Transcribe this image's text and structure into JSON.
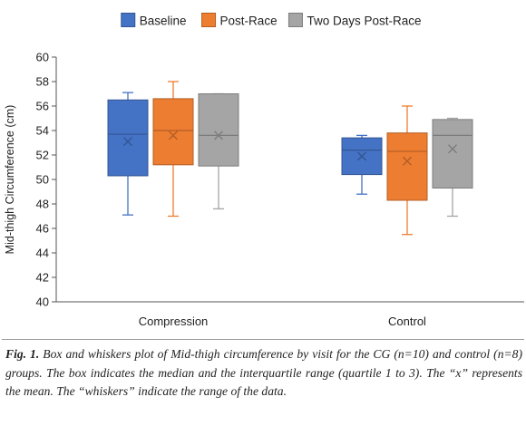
{
  "chart_data": {
    "type": "box",
    "ylabel": "Mid-thigh Circumference (cm)",
    "ylim": [
      40,
      60
    ],
    "ytick_step": 2,
    "categories": [
      "Compression",
      "Control"
    ],
    "legend_position": "top",
    "series": [
      {
        "name": "Baseline",
        "color": "#4472c4",
        "boxes": [
          {
            "category": "Compression",
            "min": 47.1,
            "q1": 50.3,
            "median": 53.7,
            "q3": 56.5,
            "max": 57.1,
            "mean": 53.1
          },
          {
            "category": "Control",
            "min": 48.8,
            "q1": 50.4,
            "median": 52.4,
            "q3": 53.4,
            "max": 53.6,
            "mean": 51.9
          }
        ]
      },
      {
        "name": "Post-Race",
        "color": "#ed7d31",
        "boxes": [
          {
            "category": "Compression",
            "min": 47.0,
            "q1": 51.2,
            "median": 54.0,
            "q3": 56.6,
            "max": 58.0,
            "mean": 53.6
          },
          {
            "category": "Control",
            "min": 45.5,
            "q1": 48.3,
            "median": 52.3,
            "q3": 53.8,
            "max": 56.0,
            "mean": 51.5
          }
        ]
      },
      {
        "name": "Two Days Post-Race",
        "color": "#a5a5a5",
        "boxes": [
          {
            "category": "Compression",
            "min": 47.6,
            "q1": 51.1,
            "median": 53.6,
            "q3": 57.0,
            "max": 57.0,
            "mean": 53.6
          },
          {
            "category": "Control",
            "min": 47.0,
            "q1": 49.3,
            "median": 53.6,
            "q3": 54.9,
            "max": 55.0,
            "mean": 52.5
          }
        ]
      }
    ]
  },
  "caption": {
    "label": "Fig. 1.",
    "text": " Box and whiskers plot of Mid-thigh circumference by visit for the CG (n=10) and control (n=8) groups. The box indicates the median and the interquartile range (quartile 1 to 3). The “x” represents the mean. The “whiskers” indicate the range of the data."
  }
}
